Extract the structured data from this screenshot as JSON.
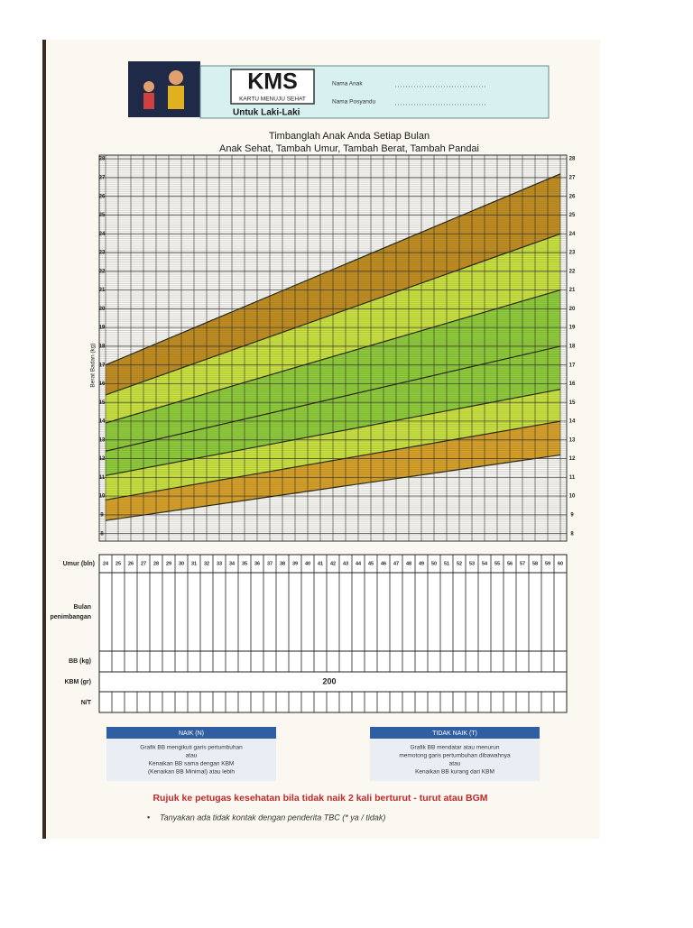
{
  "header": {
    "logo": "KMS",
    "logo_caption": "KARTU MENUJU SEHAT",
    "subtitle": "Untuk Laki-Laki",
    "fields": [
      "Nama Anak",
      "Nama Posyandu"
    ]
  },
  "chart_data": {
    "type": "band",
    "title": "Timbanglah Anak Anda Setiap Bulan",
    "subtitle": "Anak Sehat, Tambah Umur, Tambah Berat, Tambah Pandai",
    "y_label": "Berat Badan (kg)",
    "x_label": "Umur (bln)",
    "x": [
      24,
      60
    ],
    "xlim": [
      24,
      60
    ],
    "xticks": [
      24,
      25,
      26,
      27,
      28,
      29,
      30,
      31,
      32,
      33,
      34,
      35,
      36,
      37,
      38,
      39,
      40,
      41,
      42,
      43,
      44,
      45,
      46,
      47,
      48,
      49,
      50,
      51,
      52,
      53,
      54,
      55,
      56,
      57,
      58,
      59,
      60
    ],
    "ylim": [
      7.6,
      28.2
    ],
    "yticks": [
      8,
      9,
      10,
      11,
      12,
      13,
      14,
      15,
      16,
      17,
      18,
      19,
      20,
      21,
      22,
      23,
      24,
      25,
      26,
      27,
      28
    ],
    "series": [
      {
        "values": [
          8.7,
          12.2
        ]
      },
      {
        "values": [
          9.8,
          14.0
        ]
      },
      {
        "values": [
          11.1,
          15.7
        ]
      },
      {
        "values": [
          12.4,
          18.0
        ]
      },
      {
        "values": [
          13.9,
          21.0
        ]
      },
      {
        "values": [
          15.4,
          24.0
        ]
      },
      {
        "values": [
          17.0,
          27.2
        ]
      }
    ],
    "band_colors": [
      "#dba224",
      "#cde63c",
      "#8fcf36",
      "#8fcf36",
      "#cde63c",
      "#c48e1c"
    ],
    "line_color": "#2a2a1a",
    "grid": true
  },
  "table": {
    "rows": [
      [
        "Bulan",
        "penimbangan"
      ],
      [
        "BB (kg)"
      ],
      [
        "KBM (gr)"
      ],
      [
        "N/T"
      ]
    ],
    "kbm_value": 200
  },
  "legend_boxes": [
    {
      "title": "NAIK (N)",
      "lines": [
        "Grafik BB mengikuti garis pertumbuhan",
        "atau",
        "Kenaikan BB sama dengan KBM",
        "(Kenaikan BB Minimal) atau lebih"
      ]
    },
    {
      "title": "TIDAK NAIK (T)",
      "lines": [
        "Grafik BB mendatar atau menurun",
        "memotong garis pertumbuhan dibawahnya",
        "atau",
        "Kenaikan BB kurang dari KBM"
      ]
    }
  ],
  "footer": {
    "warning": "Rujuk ke petugas kesehatan bila tidak naik 2 kali berturut - turut atau BGM",
    "note": "Tanyakan ada tidak kontak dengan penderita TBC (* ya / tidak)"
  }
}
